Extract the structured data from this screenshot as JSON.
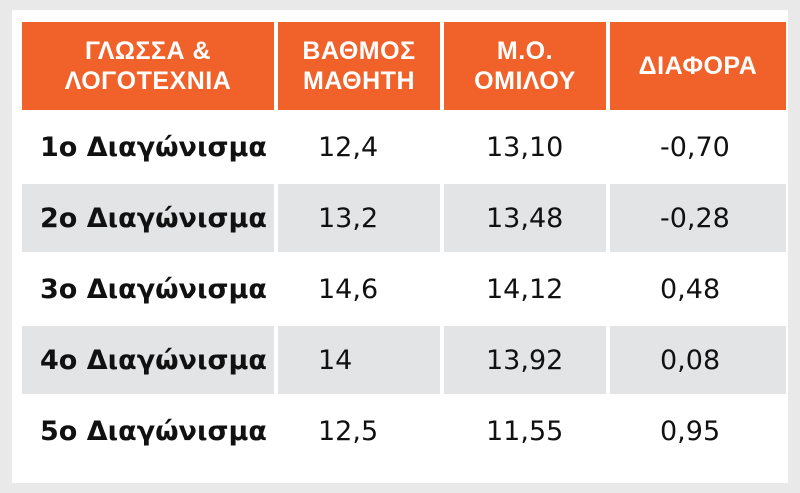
{
  "table": {
    "header": [
      "ΓΛΩΣΣΑ &\nΛΟΓΟΤΕΧΝΙΑ",
      "ΒΑΘΜΟΣ\nΜΑΘΗΤΗ",
      "Μ.Ο.\nΟΜΙΛΟΥ",
      "ΔΙΑΦΟΡΑ"
    ],
    "rows": [
      [
        "1ο Διαγώνισμα",
        "12,4",
        "13,10",
        "-0,70"
      ],
      [
        "2ο Διαγώνισμα",
        "13,2",
        "13,48",
        "-0,28"
      ],
      [
        "3ο Διαγώνισμα",
        "14,6",
        "14,12",
        "0,48"
      ],
      [
        "4ο Διαγώνισμα",
        "14",
        "13,92",
        "0,08"
      ],
      [
        "5ο Διαγώνισμα",
        "12,5",
        "11,55",
        "0,95"
      ]
    ]
  }
}
